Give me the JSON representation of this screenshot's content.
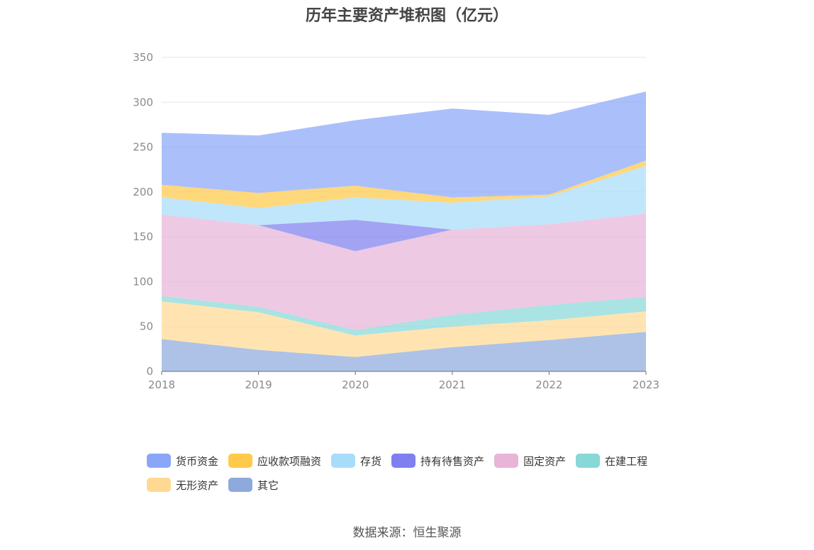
{
  "title": "历年主要资产堆积图（亿元）",
  "source": "数据来源：恒生聚源",
  "chart_data": {
    "type": "area",
    "stacked": true,
    "title": "历年主要资产堆积图（亿元）",
    "x": [
      "2018",
      "2019",
      "2020",
      "2021",
      "2022",
      "2023"
    ],
    "ylim": [
      0,
      350
    ],
    "yticks": [
      0,
      50,
      100,
      150,
      200,
      250,
      300,
      350
    ],
    "grid": true,
    "legend_position": "bottom",
    "series": [
      {
        "name": "其它",
        "color": "#8eaadc",
        "values": [
          36,
          24,
          16,
          27,
          35,
          44
        ]
      },
      {
        "name": "无形资产",
        "color": "#ffd994",
        "values": [
          42,
          42,
          24,
          23,
          22,
          23
        ]
      },
      {
        "name": "在建工程",
        "color": "#88d8d8",
        "values": [
          6,
          6,
          6,
          13,
          17,
          16
        ]
      },
      {
        "name": "固定资产",
        "color": "#e8b4d8",
        "values": [
          91,
          91,
          88,
          95,
          90,
          93
        ]
      },
      {
        "name": "持有待售资产",
        "color": "#7f7ff0",
        "values": [
          0,
          0,
          35,
          0,
          0,
          0
        ]
      },
      {
        "name": "存货",
        "color": "#a8ddfa",
        "values": [
          19,
          19,
          25,
          30,
          31,
          53
        ]
      },
      {
        "name": "应收款项融资",
        "color": "#ffc94a",
        "values": [
          14,
          17,
          13,
          6,
          2,
          6
        ]
      },
      {
        "name": "货币资金",
        "color": "#8aa6f8",
        "values": [
          58,
          64,
          73,
          99,
          89,
          77
        ]
      }
    ],
    "legend_order": [
      "货币资金",
      "应收款项融资",
      "存货",
      "持有待售资产",
      "固定资产",
      "在建工程",
      "无形资产",
      "其它"
    ]
  }
}
